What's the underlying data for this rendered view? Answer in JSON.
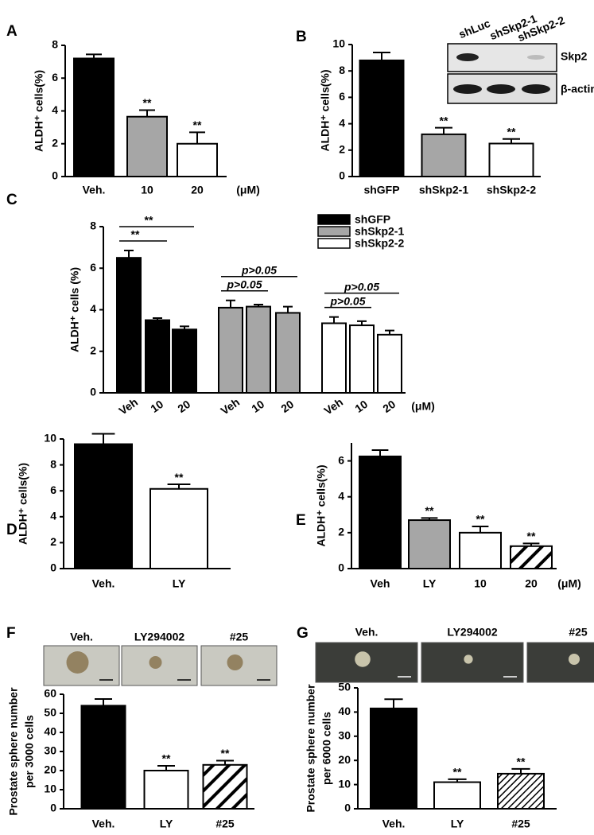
{
  "chart_data": [
    {
      "type": "bar",
      "label": "A",
      "ylabel": "ALDH⁺ cells(%)",
      "categories": [
        "Veh.",
        "10",
        "20"
      ],
      "values": [
        7.2,
        3.65,
        2.0
      ],
      "errors": [
        0.25,
        0.4,
        0.7
      ],
      "annotations": [
        null,
        "**",
        "**"
      ],
      "colors": [
        "#000000",
        "#a6a6a6",
        "#ffffff"
      ],
      "ylim": [
        0,
        8
      ],
      "yticks": [
        0,
        2,
        4,
        6,
        8
      ],
      "unit": "(μM)"
    },
    {
      "type": "bar",
      "label": "B",
      "ylabel": "ALDH⁺ cells(%)",
      "categories": [
        "shGFP",
        "shSkp2-1",
        "shSkp2-2"
      ],
      "values": [
        8.8,
        3.2,
        2.5
      ],
      "errors": [
        0.6,
        0.5,
        0.35
      ],
      "annotations": [
        null,
        "**",
        "**"
      ],
      "colors": [
        "#000000",
        "#a6a6a6",
        "#ffffff"
      ],
      "ylim": [
        0,
        10
      ],
      "yticks": [
        0,
        2,
        4,
        6,
        8,
        10
      ],
      "inset": {
        "lanes": [
          "shLuc",
          "shSkp2-1",
          "shSkp2-2"
        ],
        "bands": [
          "Skp2",
          "β-actin"
        ]
      }
    },
    {
      "type": "grouped_bar",
      "label": "C",
      "ylabel": "ALDH⁺ cells (%)",
      "categories": [
        "Veh",
        "10",
        "20"
      ],
      "series": [
        {
          "name": "shGFP",
          "color": "#000000",
          "values": [
            6.5,
            3.5,
            3.05
          ],
          "errors": [
            0.35,
            0.1,
            0.15
          ],
          "comparisons": [
            {
              "pair": [
                "Veh",
                "10"
              ],
              "label": "**"
            },
            {
              "pair": [
                "Veh",
                "20"
              ],
              "label": "**"
            }
          ]
        },
        {
          "name": "shSkp2-1",
          "color": "#a6a6a6",
          "values": [
            4.1,
            4.15,
            3.85
          ],
          "errors": [
            0.35,
            0.1,
            0.3
          ],
          "comparisons": [
            {
              "pair": [
                "Veh",
                "10"
              ],
              "label": "p>0.05"
            },
            {
              "pair": [
                "Veh",
                "20"
              ],
              "label": "p>0.05"
            }
          ]
        },
        {
          "name": "shSkp2-2",
          "color": "#ffffff",
          "values": [
            3.35,
            3.25,
            2.8
          ],
          "errors": [
            0.3,
            0.2,
            0.2
          ],
          "comparisons": [
            {
              "pair": [
                "Veh",
                "10"
              ],
              "label": "p>0.05"
            },
            {
              "pair": [
                "Veh",
                "20"
              ],
              "label": "p>0.05"
            }
          ]
        }
      ],
      "ylim": [
        0,
        8
      ],
      "yticks": [
        0,
        2,
        4,
        6,
        8
      ],
      "unit": "(μM)"
    },
    {
      "type": "bar",
      "label": "D",
      "ylabel": "ALDH⁺ cells(%)",
      "categories": [
        "Veh.",
        "LY"
      ],
      "values": [
        9.6,
        6.15
      ],
      "errors": [
        0.8,
        0.35
      ],
      "annotations": [
        null,
        "**"
      ],
      "colors": [
        "#000000",
        "#ffffff"
      ],
      "ylim": [
        0,
        10
      ],
      "yticks": [
        0,
        2,
        4,
        6,
        8,
        10
      ]
    },
    {
      "type": "bar",
      "label": "E",
      "ylabel": "ALDH⁺ cells(%)",
      "categories": [
        "Veh",
        "LY",
        "10",
        "20"
      ],
      "values": [
        6.25,
        2.7,
        2.0,
        1.25
      ],
      "errors": [
        0.35,
        0.12,
        0.35,
        0.15
      ],
      "annotations": [
        null,
        "**",
        "**",
        "**"
      ],
      "colors": [
        "#000000",
        "#a6a6a6",
        "#ffffff",
        "#ffffff"
      ],
      "hatch": [
        false,
        false,
        false,
        true
      ],
      "ylim": [
        0,
        7
      ],
      "yticks": [
        0,
        2,
        4,
        6
      ],
      "unit": "(μM)"
    },
    {
      "type": "bar",
      "label": "F",
      "images": [
        "Veh.",
        "LY294002",
        "#25"
      ],
      "ylabel": [
        "Prostate sphere number",
        "per 3000 cells"
      ],
      "categories": [
        "Veh.",
        "LY",
        "#25"
      ],
      "values": [
        54,
        20,
        23
      ],
      "errors": [
        3.5,
        2.5,
        2.2
      ],
      "annotations": [
        null,
        "**",
        "**"
      ],
      "colors": [
        "#000000",
        "#ffffff",
        "#ffffff"
      ],
      "hatch": [
        false,
        false,
        true
      ],
      "ylim": [
        0,
        60
      ],
      "yticks": [
        0,
        10,
        20,
        30,
        40,
        50,
        60
      ]
    },
    {
      "type": "bar",
      "label": "G",
      "images": [
        "Veh.",
        "LY294002",
        "#25"
      ],
      "ylabel": [
        "Prostate sphere number",
        "per 6000 cells"
      ],
      "categories": [
        "Veh.",
        "LY",
        "#25"
      ],
      "values": [
        41.5,
        11,
        14.5
      ],
      "errors": [
        3.8,
        1.2,
        2
      ],
      "annotations": [
        null,
        "**",
        "**"
      ],
      "colors": [
        "#000000",
        "#ffffff",
        "#ffffff"
      ],
      "hatch": [
        false,
        false,
        true
      ],
      "ylim": [
        0,
        50
      ],
      "yticks": [
        0,
        10,
        20,
        30,
        40,
        50
      ]
    }
  ]
}
